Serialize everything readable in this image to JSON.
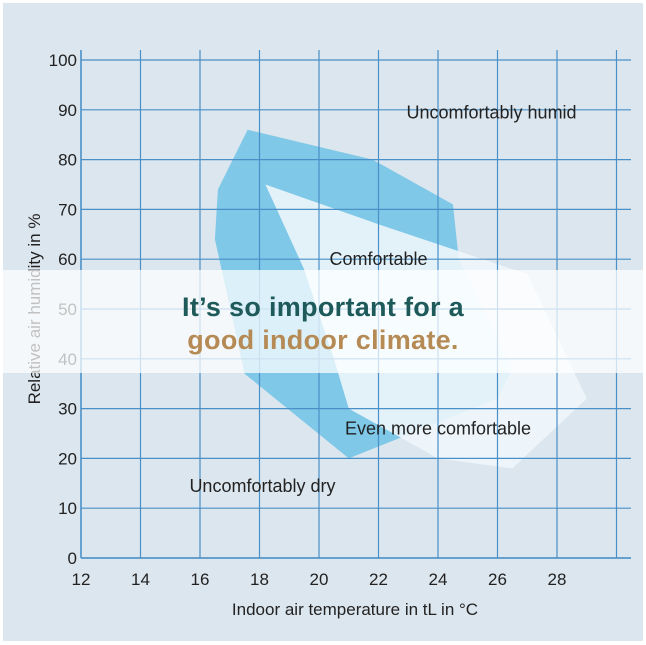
{
  "colors": {
    "background": "#dce6ee",
    "grid": "#4a90c8",
    "axis": "#4a90c8",
    "zone_comfortable": "#6ec2e6",
    "zone_even_more": "#eef6fb",
    "banner_line1": "#1f5a5a",
    "banner_line2": "#b58a55"
  },
  "chart_data": {
    "type": "area",
    "title": "",
    "xlabel": "Indoor air temperature in tL in °C",
    "ylabel": "Relative air humidity in %",
    "xlim": [
      12,
      30
    ],
    "ylim": [
      0,
      100
    ],
    "grid": true,
    "x_ticks": [
      12,
      14,
      16,
      18,
      20,
      22,
      24,
      26,
      28
    ],
    "y_ticks": [
      0,
      10,
      20,
      30,
      40,
      50,
      60,
      70,
      80,
      90,
      100
    ],
    "series": [
      {
        "name": "Comfortable",
        "points": [
          [
            17.6,
            86
          ],
          [
            21.8,
            80
          ],
          [
            24.5,
            71
          ],
          [
            24.7,
            60
          ],
          [
            26.5,
            38
          ],
          [
            26,
            32
          ],
          [
            21,
            20
          ],
          [
            17.5,
            37
          ],
          [
            16.5,
            64
          ],
          [
            16.6,
            74
          ]
        ]
      },
      {
        "name": "Even more comfortable",
        "points": [
          [
            18.2,
            75
          ],
          [
            22,
            67
          ],
          [
            25.5,
            60
          ],
          [
            27,
            57
          ],
          [
            29,
            32
          ],
          [
            26.5,
            18
          ],
          [
            24,
            20
          ],
          [
            22.5,
            25
          ],
          [
            21,
            30
          ],
          [
            20.5,
            40
          ],
          [
            19.5,
            58
          ]
        ]
      }
    ],
    "annotations": [
      {
        "text": "Uncomfortably humid",
        "x": 25.8,
        "y": 89.5
      },
      {
        "text": "Comfortable",
        "x": 22,
        "y": 60
      },
      {
        "text": "Even more comfortable",
        "x": 24,
        "y": 26
      },
      {
        "text": "Uncomfortably dry",
        "x": 18.1,
        "y": 14.5
      }
    ]
  },
  "banner": {
    "line1": "It’s so important for a",
    "line2": "good indoor climate."
  }
}
